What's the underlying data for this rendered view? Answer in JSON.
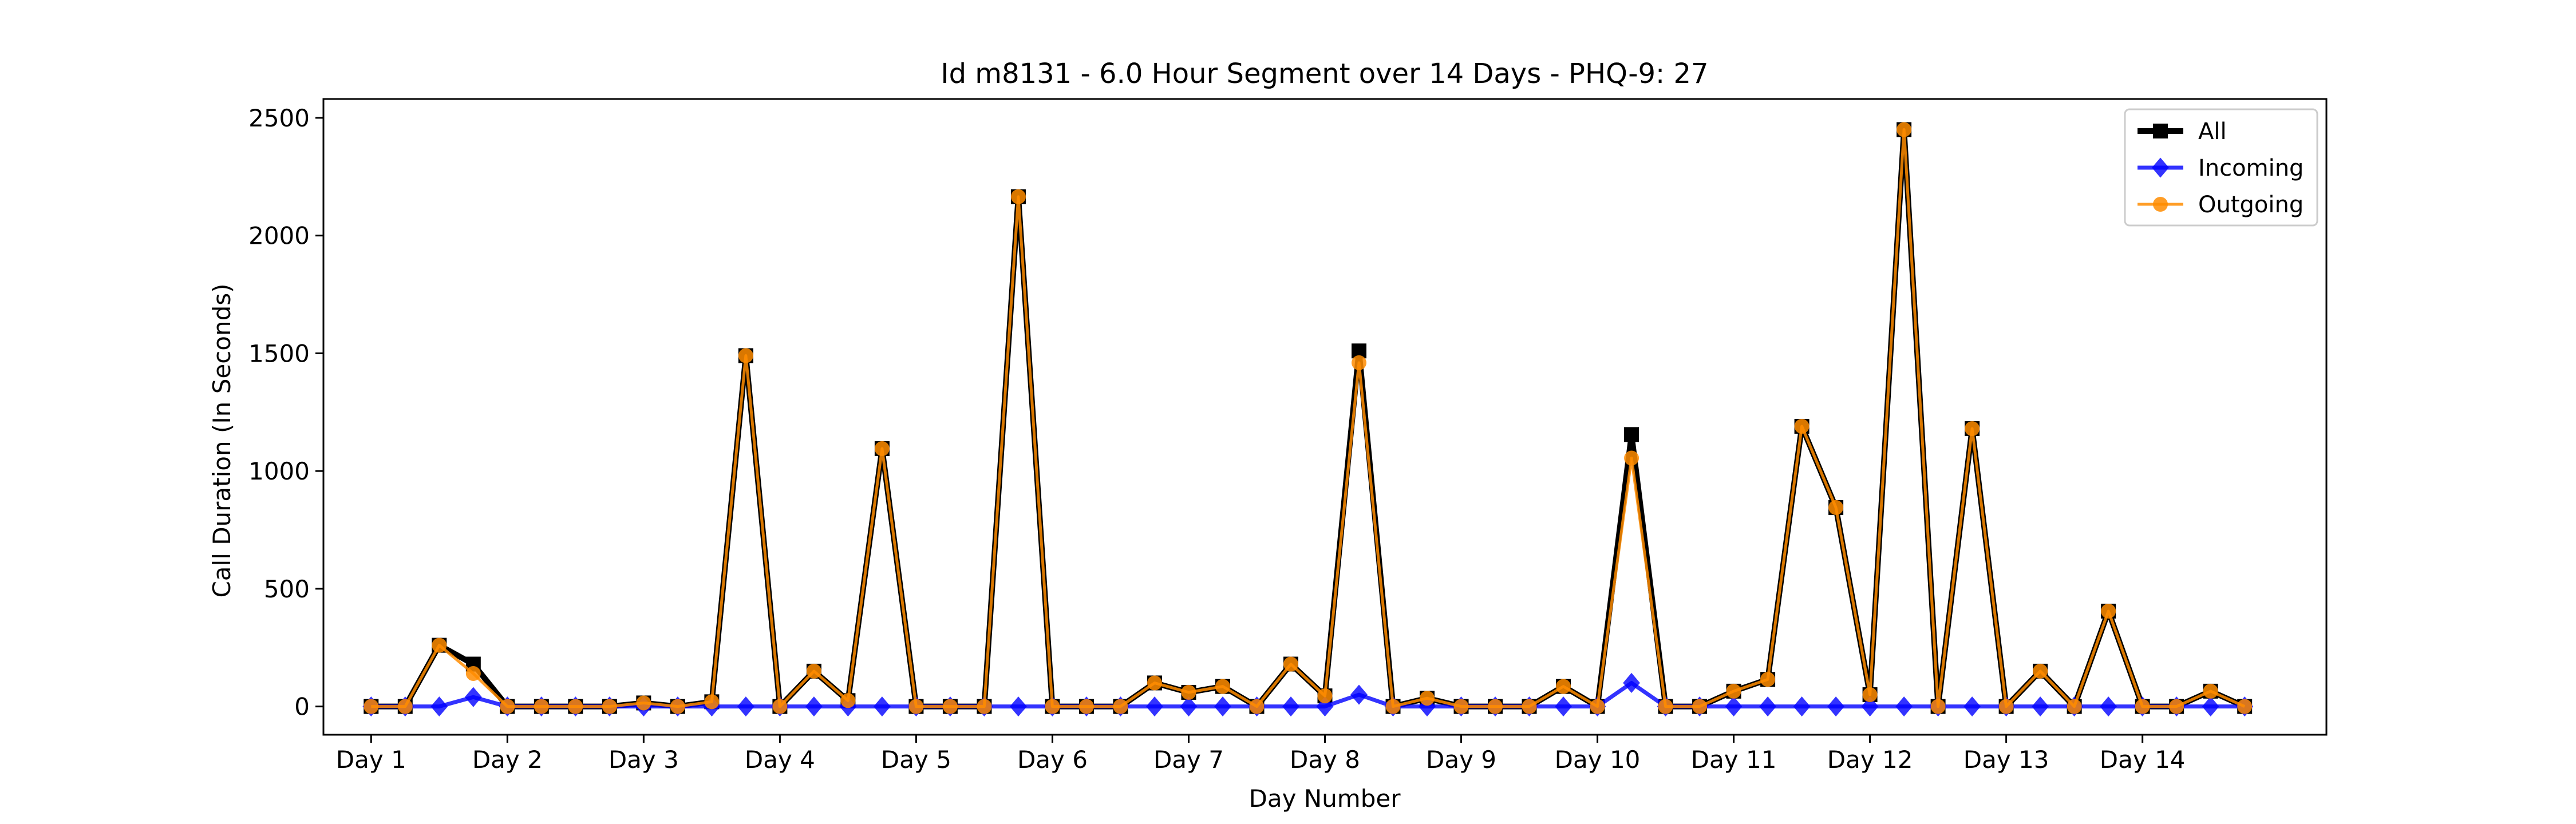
{
  "chart_data": {
    "type": "line",
    "title": "Id m8131 - 6.0 Hour Segment over 14 Days - PHQ-9: 27",
    "xlabel": "Day Number",
    "ylabel": "Call Duration (In Seconds)",
    "ylim": [
      -120,
      2580
    ],
    "xlim": [
      -1.4,
      57.4
    ],
    "yticks": [
      0,
      500,
      1000,
      1500,
      2000,
      2500
    ],
    "xticks": [
      {
        "pos": 0,
        "label": "Day 1"
      },
      {
        "pos": 4,
        "label": "Day 2"
      },
      {
        "pos": 8,
        "label": "Day 3"
      },
      {
        "pos": 12,
        "label": "Day 4"
      },
      {
        "pos": 16,
        "label": "Day 5"
      },
      {
        "pos": 20,
        "label": "Day 6"
      },
      {
        "pos": 24,
        "label": "Day 7"
      },
      {
        "pos": 28,
        "label": "Day 8"
      },
      {
        "pos": 32,
        "label": "Day 9"
      },
      {
        "pos": 36,
        "label": "Day 10"
      },
      {
        "pos": 40,
        "label": "Day 11"
      },
      {
        "pos": 44,
        "label": "Day 12"
      },
      {
        "pos": 48,
        "label": "Day 13"
      },
      {
        "pos": 52,
        "label": "Day 14"
      }
    ],
    "grid": false,
    "legend": "top-right",
    "series": [
      {
        "name": "All",
        "color": "#000000",
        "marker": "square",
        "values": [
          0,
          0,
          260,
          180,
          0,
          0,
          0,
          0,
          15,
          0,
          20,
          1490,
          0,
          150,
          25,
          1095,
          0,
          0,
          0,
          2165,
          0,
          0,
          0,
          100,
          60,
          85,
          0,
          180,
          45,
          1510,
          0,
          35,
          0,
          0,
          0,
          85,
          0,
          1155,
          0,
          0,
          65,
          115,
          1190,
          845,
          50,
          2450,
          0,
          1180,
          0,
          150,
          0,
          405,
          0,
          0,
          65,
          0
        ]
      },
      {
        "name": "Incoming",
        "color": "#0000ff",
        "marker": "diamond",
        "values": [
          0,
          0,
          0,
          40,
          0,
          0,
          0,
          0,
          0,
          0,
          0,
          0,
          0,
          0,
          0,
          0,
          0,
          0,
          0,
          0,
          0,
          0,
          0,
          0,
          0,
          0,
          0,
          0,
          0,
          50,
          0,
          0,
          0,
          0,
          0,
          0,
          0,
          100,
          0,
          0,
          0,
          0,
          0,
          0,
          0,
          0,
          0,
          0,
          0,
          0,
          0,
          0,
          0,
          0,
          0,
          0
        ]
      },
      {
        "name": "Outgoing",
        "color": "#ff8c00",
        "marker": "circle",
        "values": [
          0,
          0,
          260,
          140,
          0,
          0,
          0,
          0,
          15,
          0,
          20,
          1490,
          0,
          150,
          25,
          1095,
          0,
          0,
          0,
          2165,
          0,
          0,
          0,
          100,
          60,
          85,
          0,
          180,
          45,
          1460,
          0,
          35,
          0,
          0,
          0,
          85,
          0,
          1055,
          0,
          0,
          65,
          115,
          1190,
          845,
          50,
          2450,
          0,
          1180,
          0,
          150,
          0,
          405,
          0,
          0,
          65,
          0
        ]
      }
    ]
  }
}
